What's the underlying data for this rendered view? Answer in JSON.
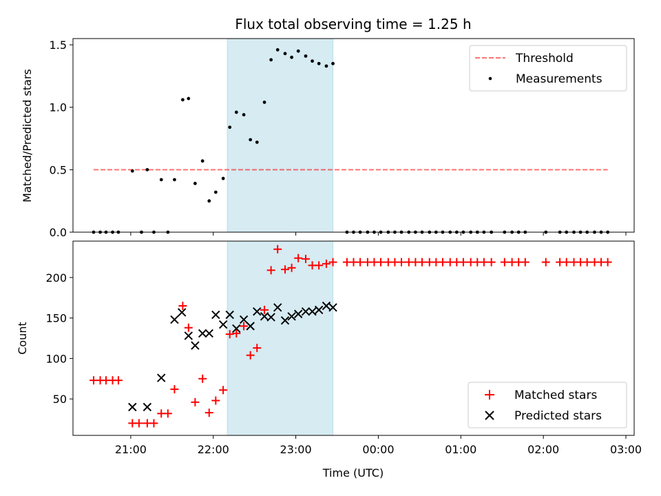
{
  "chart_data": [
    {
      "type": "scatter",
      "title": "Flux total observing time = 1.25 h",
      "ylabel": "Matched/Predicted stars",
      "xlabel": "",
      "ylim": [
        0,
        1.55
      ],
      "yticks": [
        0.0,
        0.5,
        1.0,
        1.5
      ],
      "ytick_labels": [
        "0.0",
        "0.5",
        "1.0",
        "1.5"
      ],
      "legend_position": "top-right",
      "shaded_region": {
        "x": [
          22.17,
          23.45
        ],
        "color": "#add8e6"
      },
      "threshold": {
        "name": "Threshold",
        "y": 0.5,
        "x": [
          20.55,
          26.78
        ],
        "color": "#ff0000"
      },
      "series": [
        {
          "name": "Measurements",
          "color": "#000000",
          "points": [
            [
              20.55,
              0
            ],
            [
              20.63,
              0
            ],
            [
              20.7,
              0
            ],
            [
              20.78,
              0
            ],
            [
              20.85,
              0
            ],
            [
              21.02,
              0.49
            ],
            [
              21.13,
              0
            ],
            [
              21.2,
              0.5
            ],
            [
              21.28,
              0
            ],
            [
              21.37,
              0.42
            ],
            [
              21.45,
              0
            ],
            [
              21.53,
              0.42
            ],
            [
              21.63,
              1.06
            ],
            [
              21.7,
              1.07
            ],
            [
              21.78,
              0.39
            ],
            [
              21.87,
              0.57
            ],
            [
              21.95,
              0.25
            ],
            [
              22.03,
              0.32
            ],
            [
              22.12,
              0.43
            ],
            [
              22.2,
              0.84
            ],
            [
              22.28,
              0.96
            ],
            [
              22.37,
              0.94
            ],
            [
              22.45,
              0.74
            ],
            [
              22.53,
              0.72
            ],
            [
              22.62,
              1.04
            ],
            [
              22.7,
              1.38
            ],
            [
              22.78,
              1.46
            ],
            [
              22.87,
              1.43
            ],
            [
              22.95,
              1.4
            ],
            [
              23.03,
              1.45
            ],
            [
              23.12,
              1.41
            ],
            [
              23.2,
              1.37
            ],
            [
              23.28,
              1.35
            ],
            [
              23.37,
              1.33
            ],
            [
              23.45,
              1.35
            ],
            [
              23.62,
              0
            ],
            [
              23.7,
              0
            ],
            [
              23.78,
              0
            ],
            [
              23.87,
              0
            ],
            [
              23.95,
              0
            ],
            [
              24.03,
              0
            ],
            [
              24.12,
              0
            ],
            [
              24.2,
              0
            ],
            [
              24.28,
              0
            ],
            [
              24.37,
              0
            ],
            [
              24.45,
              0
            ],
            [
              24.53,
              0
            ],
            [
              24.62,
              0
            ],
            [
              24.7,
              0
            ],
            [
              24.78,
              0
            ],
            [
              24.87,
              0
            ],
            [
              24.95,
              0
            ],
            [
              25.03,
              0
            ],
            [
              25.12,
              0
            ],
            [
              25.2,
              0
            ],
            [
              25.28,
              0
            ],
            [
              25.37,
              0
            ],
            [
              25.53,
              0
            ],
            [
              25.62,
              0
            ],
            [
              25.7,
              0
            ],
            [
              25.78,
              0
            ],
            [
              26.03,
              0
            ],
            [
              26.2,
              0
            ],
            [
              26.28,
              0
            ],
            [
              26.37,
              0
            ],
            [
              26.45,
              0
            ],
            [
              26.53,
              0
            ],
            [
              26.62,
              0
            ],
            [
              26.7,
              0
            ],
            [
              26.78,
              0
            ]
          ]
        }
      ]
    },
    {
      "type": "scatter",
      "title": "",
      "ylabel": "Count",
      "xlabel": "Time (UTC)",
      "ylim": [
        5,
        245
      ],
      "yticks": [
        50,
        100,
        150,
        200
      ],
      "ytick_labels": [
        "50",
        "100",
        "150",
        "200"
      ],
      "xlim": [
        20.3,
        27.1
      ],
      "xticks": [
        21,
        22,
        23,
        24,
        25,
        26,
        27
      ],
      "xtick_labels": [
        "21:00",
        "22:00",
        "23:00",
        "00:00",
        "01:00",
        "02:00",
        "03:00"
      ],
      "legend_position": "bottom-right",
      "shaded_region": {
        "x": [
          22.17,
          23.45
        ],
        "color": "#add8e6"
      },
      "series": [
        {
          "name": "Matched stars",
          "color": "#ff0000",
          "marker": "plus",
          "points": [
            [
              20.55,
              73
            ],
            [
              20.63,
              73
            ],
            [
              20.7,
              73
            ],
            [
              20.78,
              73
            ],
            [
              20.85,
              73
            ],
            [
              21.02,
              20
            ],
            [
              21.1,
              20
            ],
            [
              21.2,
              20
            ],
            [
              21.28,
              20
            ],
            [
              21.37,
              32
            ],
            [
              21.45,
              32
            ],
            [
              21.53,
              62
            ],
            [
              21.63,
              165
            ],
            [
              21.7,
              138
            ],
            [
              21.78,
              46
            ],
            [
              21.87,
              75
            ],
            [
              21.95,
              33
            ],
            [
              22.03,
              48
            ],
            [
              22.12,
              61
            ],
            [
              22.2,
              130
            ],
            [
              22.28,
              131
            ],
            [
              22.37,
              140
            ],
            [
              22.45,
              104
            ],
            [
              22.53,
              113
            ],
            [
              22.62,
              160
            ],
            [
              22.7,
              209
            ],
            [
              22.78,
              235
            ],
            [
              22.87,
              210
            ],
            [
              22.95,
              212
            ],
            [
              23.03,
              224
            ],
            [
              23.12,
              223
            ],
            [
              23.2,
              215
            ],
            [
              23.28,
              215
            ],
            [
              23.37,
              217
            ],
            [
              23.45,
              219
            ],
            [
              23.62,
              219
            ],
            [
              23.7,
              219
            ],
            [
              23.78,
              219
            ],
            [
              23.87,
              219
            ],
            [
              23.95,
              219
            ],
            [
              24.03,
              219
            ],
            [
              24.12,
              219
            ],
            [
              24.2,
              219
            ],
            [
              24.28,
              219
            ],
            [
              24.37,
              219
            ],
            [
              24.45,
              219
            ],
            [
              24.53,
              219
            ],
            [
              24.62,
              219
            ],
            [
              24.7,
              219
            ],
            [
              24.78,
              219
            ],
            [
              24.87,
              219
            ],
            [
              24.95,
              219
            ],
            [
              25.03,
              219
            ],
            [
              25.12,
              219
            ],
            [
              25.2,
              219
            ],
            [
              25.28,
              219
            ],
            [
              25.37,
              219
            ],
            [
              25.53,
              219
            ],
            [
              25.62,
              219
            ],
            [
              25.7,
              219
            ],
            [
              25.78,
              219
            ],
            [
              26.03,
              219
            ],
            [
              26.2,
              219
            ],
            [
              26.28,
              219
            ],
            [
              26.37,
              219
            ],
            [
              26.45,
              219
            ],
            [
              26.53,
              219
            ],
            [
              26.62,
              219
            ],
            [
              26.7,
              219
            ],
            [
              26.78,
              219
            ]
          ]
        },
        {
          "name": "Predicted stars",
          "color": "#000000",
          "marker": "x",
          "points": [
            [
              21.02,
              40
            ],
            [
              21.2,
              40
            ],
            [
              21.37,
              76
            ],
            [
              21.53,
              148
            ],
            [
              21.62,
              157
            ],
            [
              21.7,
              128
            ],
            [
              21.78,
              116
            ],
            [
              21.87,
              131
            ],
            [
              21.95,
              131
            ],
            [
              22.03,
              154
            ],
            [
              22.12,
              142
            ],
            [
              22.2,
              154
            ],
            [
              22.28,
              137
            ],
            [
              22.37,
              148
            ],
            [
              22.45,
              140
            ],
            [
              22.53,
              158
            ],
            [
              22.62,
              152
            ],
            [
              22.7,
              151
            ],
            [
              22.78,
              163
            ],
            [
              22.87,
              147
            ],
            [
              22.95,
              152
            ],
            [
              23.03,
              155
            ],
            [
              23.12,
              158
            ],
            [
              23.2,
              158
            ],
            [
              23.28,
              160
            ],
            [
              23.37,
              165
            ],
            [
              23.45,
              163
            ]
          ]
        }
      ]
    }
  ]
}
